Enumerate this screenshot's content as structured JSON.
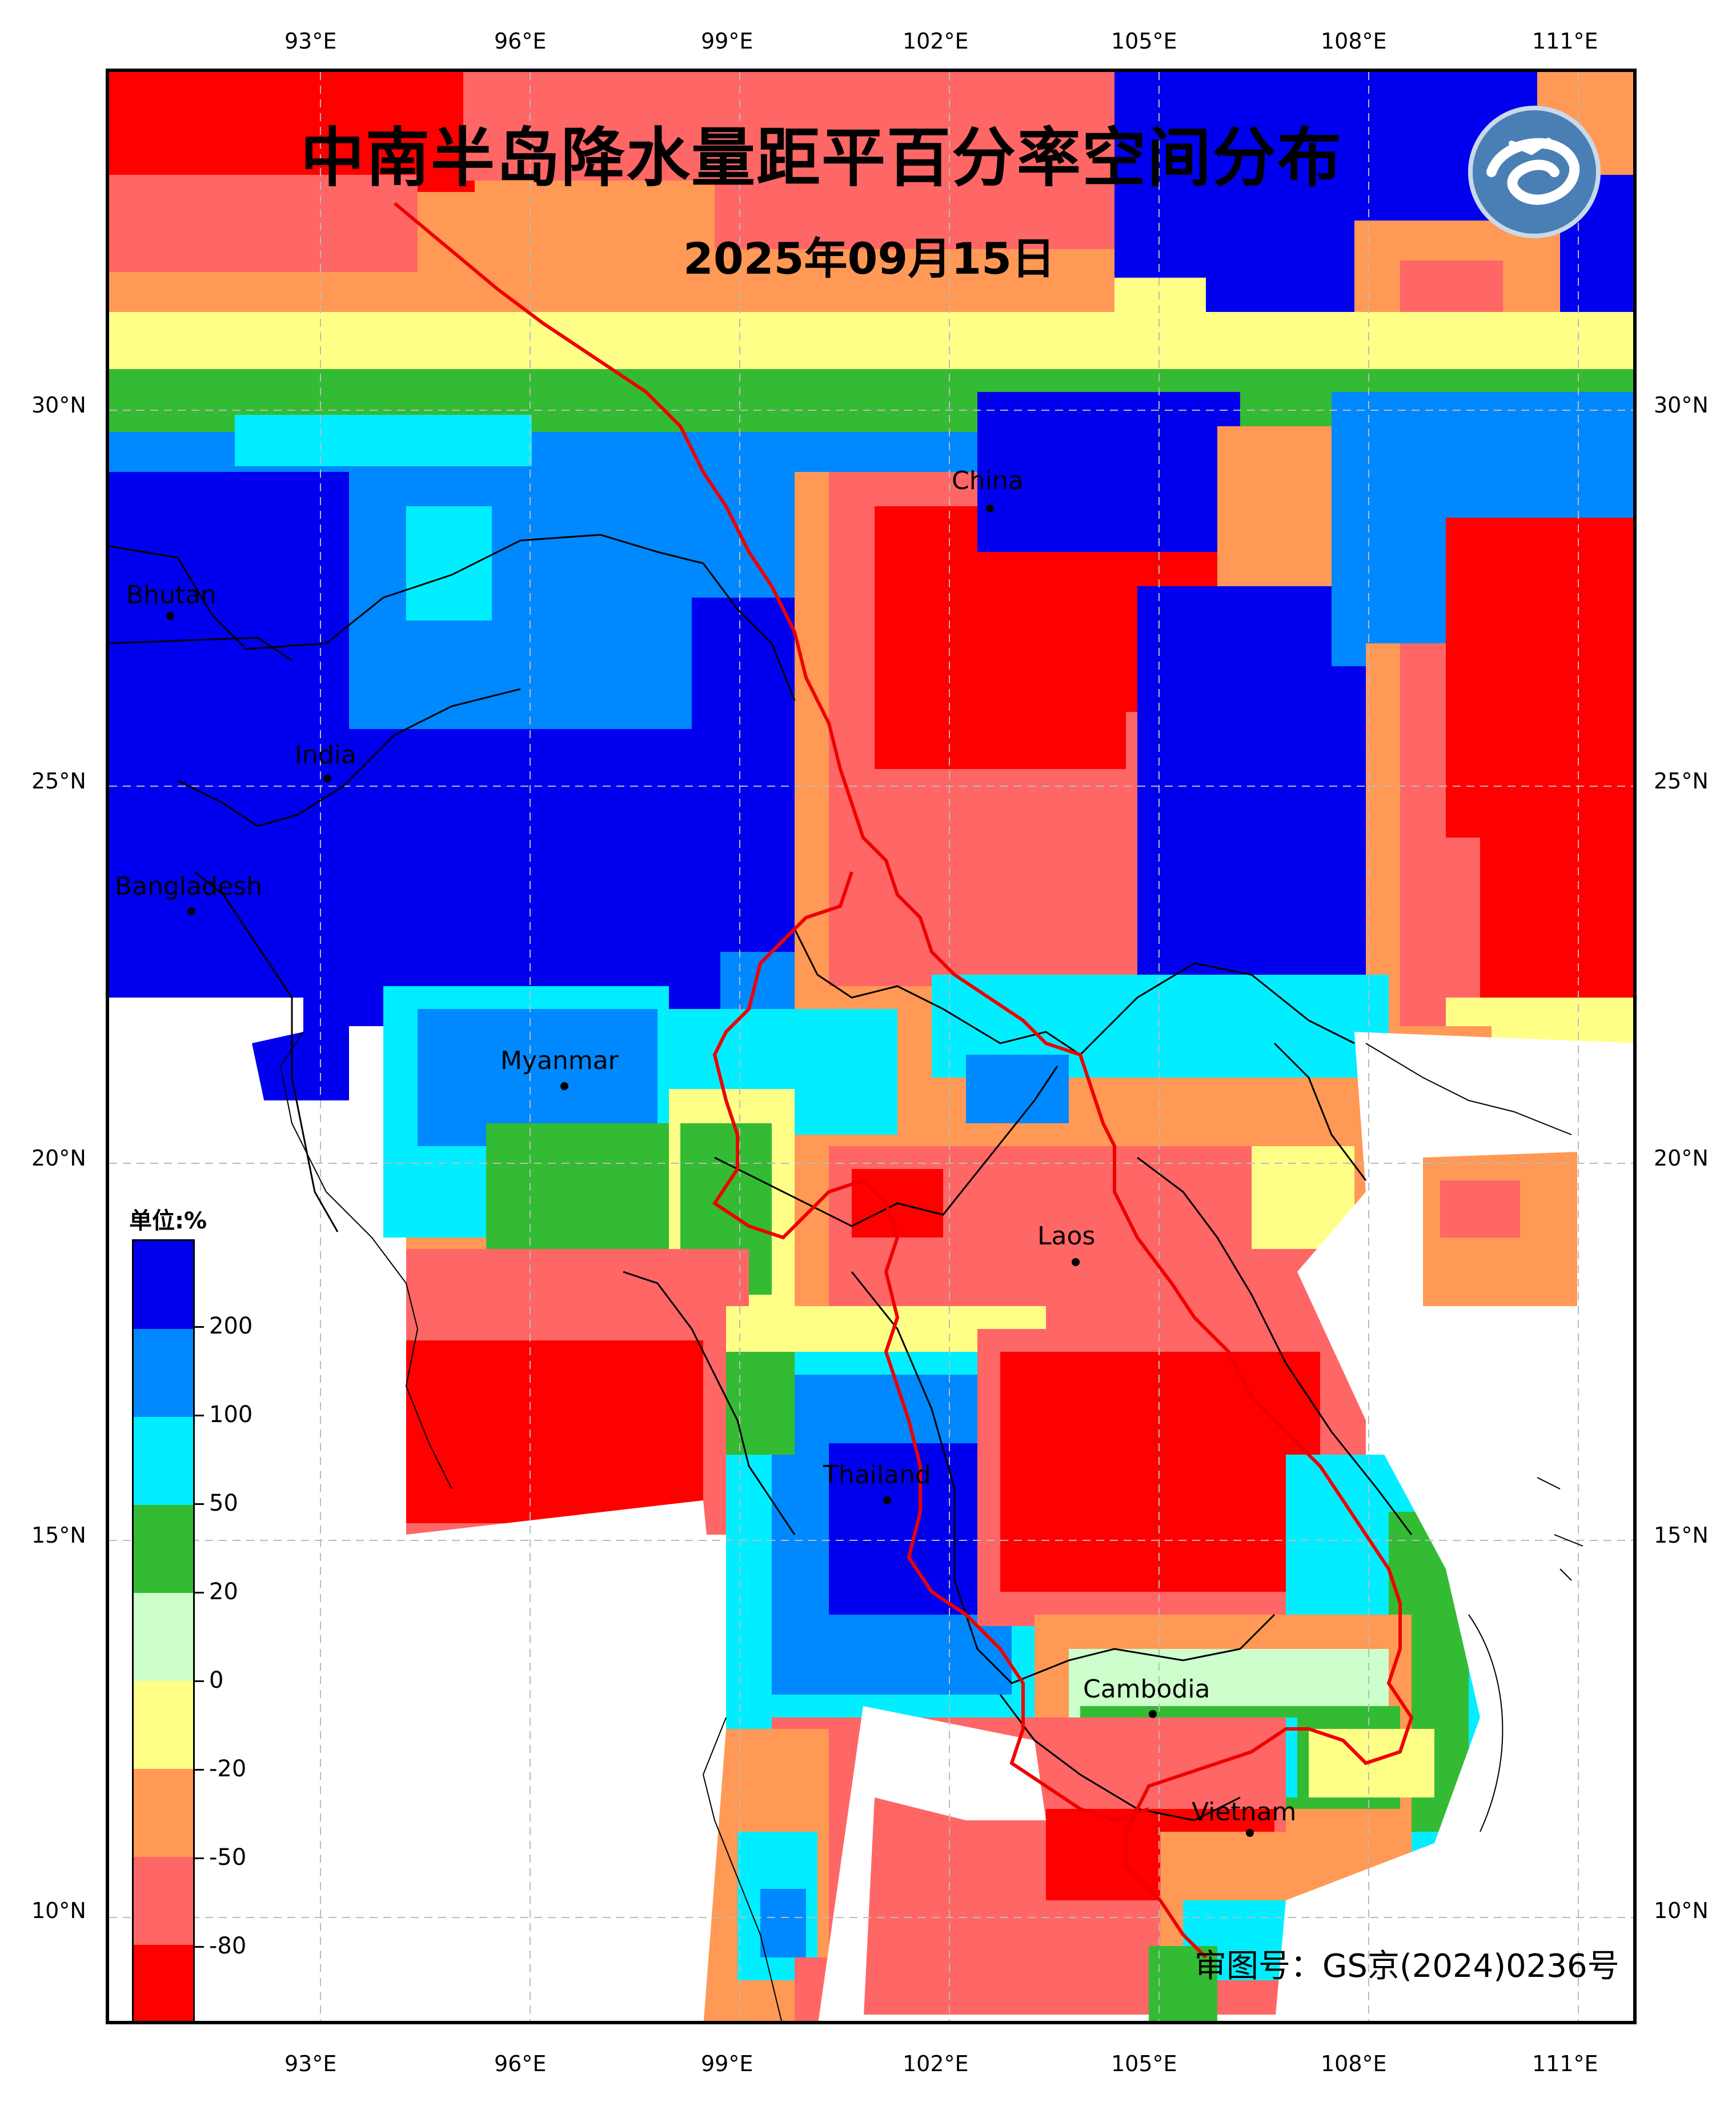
{
  "map": {
    "title": "中南半岛降水量距平百分率空间分布",
    "date": "2025年09月15日",
    "approval_number": "审图号：GS京(2024)0236号",
    "logo_icon": "dragon-logo-icon",
    "lon_ticks": [
      "93°E",
      "96°E",
      "99°E",
      "102°E",
      "105°E",
      "108°E",
      "111°E"
    ],
    "lat_ticks": [
      "30°N",
      "25°N",
      "20°N",
      "15°N",
      "10°N"
    ],
    "places": [
      {
        "name": "China"
      },
      {
        "name": "Bhutan"
      },
      {
        "name": "India"
      },
      {
        "name": "Bangladesh"
      },
      {
        "name": "Myanmar"
      },
      {
        "name": "Laos"
      },
      {
        "name": "Thailand"
      },
      {
        "name": "Cambodia"
      },
      {
        "name": "Vietnam"
      }
    ],
    "legend": {
      "unit": "单位:%",
      "labels": [
        "200",
        "100",
        "50",
        "20",
        "0",
        "-20",
        "-50",
        "-80"
      ],
      "colors": [
        "#0000ee",
        "#0088ff",
        "#00eeff",
        "#33bb33",
        "#ccffcc",
        "#ffff88",
        "#ff9955",
        "#ff6666",
        "#ff0000"
      ]
    },
    "colors": {
      "frame": "#000000",
      "border_highlight": "#ee0000",
      "country_border": "#000000",
      "grid": "#bbbbbb"
    }
  }
}
